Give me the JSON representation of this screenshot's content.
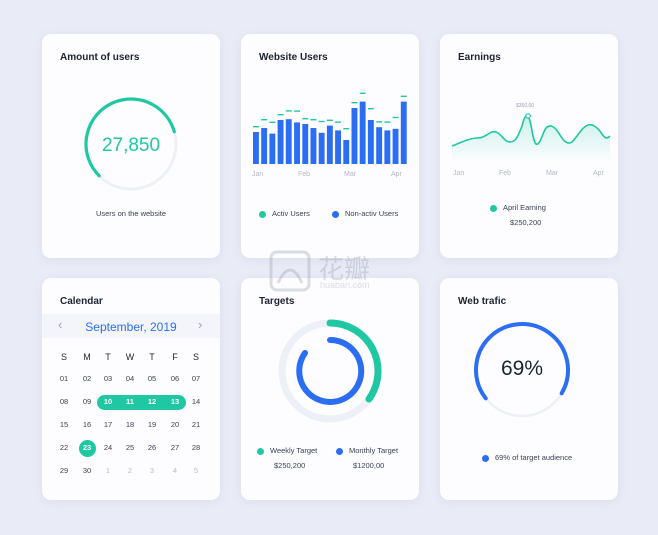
{
  "amount_card": {
    "title": "Amount of users",
    "value": "27,850",
    "caption": "Users on the website",
    "progress": 0.78
  },
  "website_users": {
    "title": "Website Users",
    "months": [
      "Jan",
      "Feb",
      "Mar",
      "Apr"
    ],
    "legend": [
      {
        "label": "Activ Users",
        "color": "#1fc8a2"
      },
      {
        "label": "Non-activ Users",
        "color": "#2b6ef3"
      }
    ]
  },
  "earnings": {
    "title": "Earnings",
    "peak_label": "$350,00",
    "months": [
      "Jan",
      "Feb",
      "Mar",
      "Apr"
    ],
    "legend_label": "April Earning",
    "legend_value": "$250,200"
  },
  "calendar": {
    "title": "Calendar",
    "month": "September, 2019",
    "prev": "‹",
    "next": "›",
    "weekdays": [
      "S",
      "M",
      "T",
      "W",
      "T",
      "F",
      "S"
    ],
    "weeks": [
      [
        "01",
        "02",
        "03",
        "04",
        "05",
        "06",
        "07"
      ],
      [
        "08",
        "09",
        "10",
        "11",
        "12",
        "13",
        "14"
      ],
      [
        "15",
        "16",
        "17",
        "18",
        "19",
        "20",
        "21"
      ],
      [
        "22",
        "23",
        "24",
        "25",
        "26",
        "27",
        "28"
      ],
      [
        "29",
        "30",
        "1",
        "2",
        "3",
        "4",
        "5"
      ]
    ]
  },
  "targets": {
    "title": "Targets",
    "weekly_label": "Weekly Target",
    "weekly_value": "$250,200",
    "monthly_label": "Monthly Target",
    "monthly_value": "$1200,00"
  },
  "web_traffic": {
    "title": "Web trafic",
    "value": "69%",
    "caption": "69% of target audience",
    "fraction": 0.69
  },
  "watermark": {
    "logo": "花瓣",
    "site": "huaban.com"
  },
  "colors": {
    "teal": "#1fc8a2",
    "blue": "#2b6ef3",
    "ring_bg": "#eef0f8"
  }
}
